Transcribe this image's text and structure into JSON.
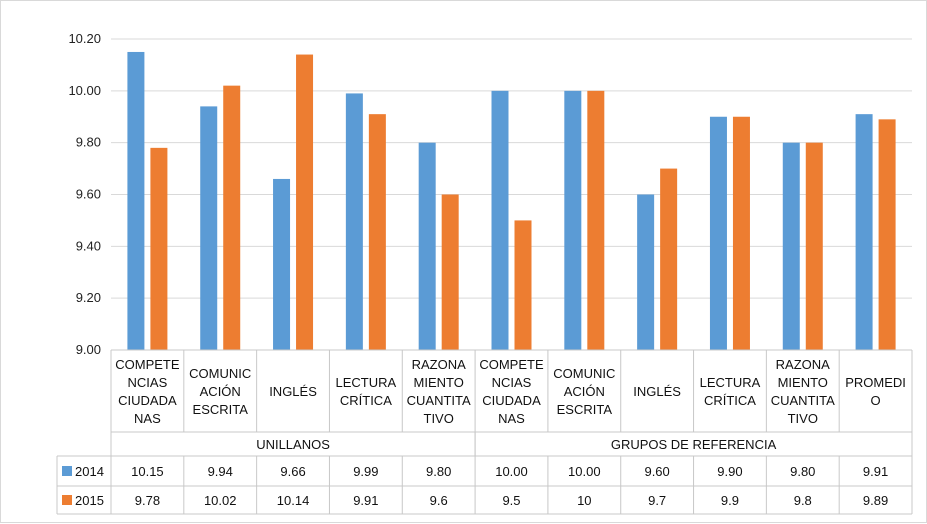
{
  "chart_data": {
    "type": "bar",
    "ylim": [
      9.0,
      10.2
    ],
    "yticks": [
      "9.00",
      "9.20",
      "9.40",
      "9.60",
      "9.80",
      "10.00",
      "10.20"
    ],
    "gridlines": true,
    "legend": "table-left",
    "groups": [
      {
        "label": "UNILLANOS",
        "span": 5
      },
      {
        "label": "GRUPOS DE REFERENCIA",
        "span": 6
      }
    ],
    "categories": [
      [
        "COMPETE",
        "NCIAS",
        "CIUDADA",
        "NAS"
      ],
      [
        "COMUNIC",
        "ACIÓN",
        "ESCRITA"
      ],
      [
        "INGLÉS"
      ],
      [
        "LECTURA",
        "CRÍTICA"
      ],
      [
        "RAZONA",
        "MIENTO",
        "CUANTITA",
        "TIVO"
      ],
      [
        "COMPETE",
        "NCIAS",
        "CIUDADA",
        "NAS"
      ],
      [
        "COMUNIC",
        "ACIÓN",
        "ESCRITA"
      ],
      [
        "INGLÉS"
      ],
      [
        "LECTURA",
        "CRÍTICA"
      ],
      [
        "RAZONA",
        "MIENTO",
        "CUANTITA",
        "TIVO"
      ],
      [
        "PROMEDI",
        "O"
      ]
    ],
    "series": [
      {
        "name": "2014",
        "color": "#5B9BD5",
        "values": [
          10.15,
          9.94,
          9.66,
          9.99,
          9.8,
          10.0,
          10.0,
          9.6,
          9.9,
          9.8,
          9.91
        ],
        "labels": [
          "10.15",
          "9.94",
          "9.66",
          "9.99",
          "9.80",
          "10.00",
          "10.00",
          "9.60",
          "9.90",
          "9.80",
          "9.91"
        ]
      },
      {
        "name": "2015",
        "color": "#ED7D31",
        "values": [
          9.78,
          10.02,
          10.14,
          9.91,
          9.6,
          9.5,
          10,
          9.7,
          9.9,
          9.8,
          9.89
        ],
        "labels": [
          "9.78",
          "10.02",
          "10.14",
          "9.91",
          "9.6",
          "9.5",
          "10",
          "9.7",
          "9.9",
          "9.8",
          "9.89"
        ]
      }
    ]
  }
}
